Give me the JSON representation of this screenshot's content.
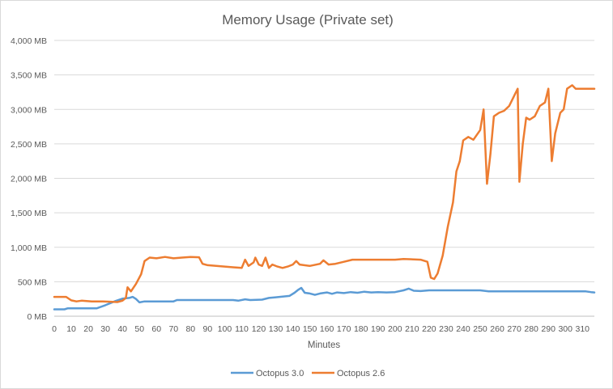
{
  "chart_data": {
    "type": "line",
    "title": "Memory Usage (Private set)",
    "xlabel": "Minutes",
    "ylabel": "",
    "xlim": [
      0,
      317
    ],
    "ylim": [
      0,
      4000
    ],
    "x_ticks": [
      "0",
      "10",
      "20",
      "30",
      "40",
      "50",
      "60",
      "70",
      "80",
      "90",
      "100",
      "110",
      "120",
      "130",
      "140",
      "150",
      "160",
      "170",
      "180",
      "190",
      "200",
      "210",
      "220",
      "230",
      "240",
      "250",
      "260",
      "270",
      "280",
      "290",
      "300",
      "310"
    ],
    "y_ticks": [
      "0 MB",
      "500 MB",
      "1,000 MB",
      "1,500 MB",
      "2,000 MB",
      "2,500 MB",
      "3,000 MB",
      "3,500 MB",
      "4,000 MB"
    ],
    "grid": true,
    "legend_position": "bottom",
    "series": [
      {
        "name": "Octopus 3.0",
        "color": "#5b9bd5",
        "points": [
          [
            0,
            100
          ],
          [
            6,
            100
          ],
          [
            8,
            115
          ],
          [
            25,
            115
          ],
          [
            30,
            160
          ],
          [
            36,
            220
          ],
          [
            40,
            255
          ],
          [
            44,
            265
          ],
          [
            46,
            280
          ],
          [
            48,
            250
          ],
          [
            50,
            200
          ],
          [
            53,
            215
          ],
          [
            70,
            215
          ],
          [
            72,
            235
          ],
          [
            105,
            235
          ],
          [
            108,
            225
          ],
          [
            112,
            245
          ],
          [
            115,
            235
          ],
          [
            122,
            240
          ],
          [
            126,
            265
          ],
          [
            130,
            275
          ],
          [
            134,
            285
          ],
          [
            138,
            295
          ],
          [
            141,
            340
          ],
          [
            143,
            380
          ],
          [
            145,
            410
          ],
          [
            147,
            340
          ],
          [
            150,
            330
          ],
          [
            153,
            310
          ],
          [
            156,
            330
          ],
          [
            160,
            345
          ],
          [
            163,
            325
          ],
          [
            166,
            345
          ],
          [
            170,
            335
          ],
          [
            174,
            350
          ],
          [
            178,
            340
          ],
          [
            182,
            355
          ],
          [
            186,
            345
          ],
          [
            190,
            350
          ],
          [
            195,
            345
          ],
          [
            200,
            350
          ],
          [
            205,
            375
          ],
          [
            208,
            400
          ],
          [
            211,
            370
          ],
          [
            215,
            365
          ],
          [
            220,
            375
          ],
          [
            250,
            375
          ],
          [
            255,
            360
          ],
          [
            312,
            360
          ],
          [
            315,
            350
          ],
          [
            317,
            345
          ]
        ]
      },
      {
        "name": "Octopus 2.6",
        "color": "#ed7d31",
        "points": [
          [
            0,
            280
          ],
          [
            7,
            280
          ],
          [
            10,
            230
          ],
          [
            13,
            215
          ],
          [
            16,
            225
          ],
          [
            22,
            215
          ],
          [
            28,
            215
          ],
          [
            33,
            210
          ],
          [
            37,
            205
          ],
          [
            40,
            225
          ],
          [
            42,
            265
          ],
          [
            43,
            420
          ],
          [
            45,
            360
          ],
          [
            48,
            470
          ],
          [
            51,
            610
          ],
          [
            53,
            800
          ],
          [
            56,
            850
          ],
          [
            60,
            840
          ],
          [
            65,
            860
          ],
          [
            70,
            840
          ],
          [
            75,
            850
          ],
          [
            80,
            860
          ],
          [
            85,
            855
          ],
          [
            87,
            760
          ],
          [
            90,
            740
          ],
          [
            95,
            730
          ],
          [
            100,
            720
          ],
          [
            105,
            710
          ],
          [
            110,
            700
          ],
          [
            112,
            820
          ],
          [
            114,
            730
          ],
          [
            117,
            780
          ],
          [
            118,
            850
          ],
          [
            120,
            750
          ],
          [
            122,
            730
          ],
          [
            124,
            850
          ],
          [
            126,
            700
          ],
          [
            128,
            750
          ],
          [
            131,
            720
          ],
          [
            134,
            700
          ],
          [
            137,
            720
          ],
          [
            140,
            750
          ],
          [
            142,
            800
          ],
          [
            144,
            750
          ],
          [
            150,
            730
          ],
          [
            156,
            760
          ],
          [
            158,
            810
          ],
          [
            161,
            750
          ],
          [
            165,
            760
          ],
          [
            170,
            790
          ],
          [
            175,
            820
          ],
          [
            200,
            820
          ],
          [
            205,
            830
          ],
          [
            215,
            820
          ],
          [
            219,
            790
          ],
          [
            221,
            560
          ],
          [
            223,
            540
          ],
          [
            225,
            620
          ],
          [
            228,
            880
          ],
          [
            231,
            1300
          ],
          [
            234,
            1650
          ],
          [
            236,
            2100
          ],
          [
            238,
            2250
          ],
          [
            240,
            2550
          ],
          [
            243,
            2600
          ],
          [
            246,
            2560
          ],
          [
            250,
            2700
          ],
          [
            252,
            3000
          ],
          [
            254,
            1920
          ],
          [
            256,
            2350
          ],
          [
            258,
            2900
          ],
          [
            261,
            2950
          ],
          [
            264,
            2980
          ],
          [
            267,
            3050
          ],
          [
            270,
            3200
          ],
          [
            272,
            3300
          ],
          [
            273,
            1950
          ],
          [
            275,
            2500
          ],
          [
            277,
            2880
          ],
          [
            279,
            2850
          ],
          [
            282,
            2900
          ],
          [
            285,
            3050
          ],
          [
            288,
            3100
          ],
          [
            290,
            3300
          ],
          [
            292,
            2250
          ],
          [
            294,
            2650
          ],
          [
            297,
            2950
          ],
          [
            299,
            3000
          ],
          [
            301,
            3300
          ],
          [
            304,
            3350
          ],
          [
            306,
            3300
          ],
          [
            310,
            3300
          ],
          [
            317,
            3300
          ]
        ]
      }
    ]
  }
}
